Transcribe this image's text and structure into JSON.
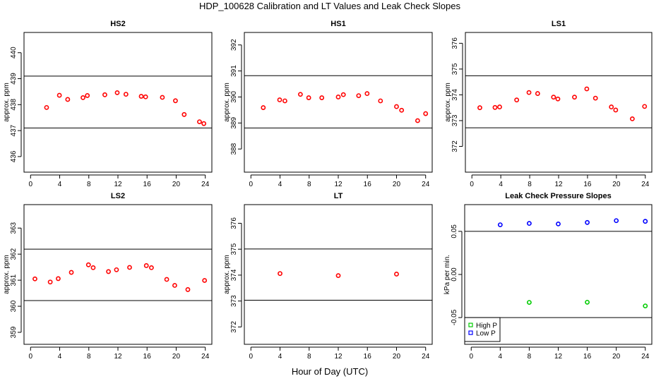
{
  "title": "HDP_100628  Calibration and LT Values and Leak Check Slopes",
  "xlabel": "Hour of Day (UTC)",
  "colors": {
    "cal": "#ff0000",
    "high": "#00cc00",
    "low": "#0000ff"
  },
  "chart_data": [
    {
      "type": "scatter",
      "title": "HS2",
      "ylabel": "approx. ppm",
      "xlim": [
        -0.9,
        24.9
      ],
      "ylim": [
        435.4,
        440.78
      ],
      "xticks": [
        "0",
        "4",
        "8",
        "12",
        "16",
        "20",
        "24"
      ],
      "yticks": [
        "436",
        "437",
        "438",
        "439",
        "440"
      ],
      "ref_lines": [
        439.1,
        437.1
      ],
      "series": [
        {
          "name": "HS2",
          "color": "#ff0000",
          "x": [
            2.2,
            3.96,
            5.1,
            7.2,
            7.8,
            10.2,
            11.9,
            13.1,
            15.2,
            15.8,
            18.1,
            19.9,
            21.1,
            23.2,
            23.8
          ],
          "y": [
            437.89,
            438.36,
            438.2,
            438.27,
            438.35,
            438.38,
            438.46,
            438.4,
            438.32,
            438.3,
            438.28,
            438.15,
            437.62,
            437.34,
            437.27
          ]
        }
      ]
    },
    {
      "type": "scatter",
      "title": "HS1",
      "ylabel": "approx. ppm",
      "xlim": [
        -0.9,
        24.9
      ],
      "ylim": [
        387.11,
        392.48
      ],
      "xticks": [
        "0",
        "4",
        "8",
        "12",
        "16",
        "20",
        "24"
      ],
      "yticks": [
        "388",
        "389",
        "390",
        "391",
        "392"
      ],
      "ref_lines": [
        390.82,
        388.81
      ],
      "series": [
        {
          "name": "HS1",
          "color": "#ff0000",
          "x": [
            1.7,
            3.95,
            4.67,
            6.8,
            7.94,
            9.74,
            12.0,
            12.7,
            14.8,
            15.96,
            17.8,
            20.0,
            20.7,
            22.9,
            24.0
          ],
          "y": [
            389.59,
            389.89,
            389.85,
            390.1,
            389.97,
            389.97,
            390.0,
            390.09,
            390.05,
            390.13,
            389.85,
            389.63,
            389.49,
            389.09,
            389.36
          ]
        }
      ]
    },
    {
      "type": "scatter",
      "title": "LS1",
      "ylabel": "approx. ppm",
      "xlim": [
        -0.9,
        24.9
      ],
      "ylim": [
        371.0,
        376.42
      ],
      "xticks": [
        "0",
        "4",
        "8",
        "12",
        "16",
        "20",
        "24"
      ],
      "yticks": [
        "372",
        "373",
        "374",
        "375",
        "376"
      ],
      "ref_lines": [
        374.74,
        372.72
      ],
      "series": [
        {
          "name": "LS1",
          "color": "#ff0000",
          "x": [
            1.1,
            3.2,
            3.84,
            6.2,
            7.9,
            9.1,
            11.3,
            11.9,
            14.2,
            15.9,
            17.1,
            19.3,
            19.9,
            22.2,
            23.9
          ],
          "y": [
            373.5,
            373.51,
            373.53,
            373.8,
            374.09,
            374.05,
            373.91,
            373.84,
            373.91,
            374.23,
            373.87,
            373.53,
            373.41,
            373.07,
            373.55
          ]
        }
      ]
    },
    {
      "type": "scatter",
      "title": "LS2",
      "ylabel": "approx. ppm",
      "xlim": [
        -0.9,
        24.9
      ],
      "ylim": [
        358.54,
        363.9
      ],
      "xticks": [
        "0",
        "4",
        "8",
        "12",
        "16",
        "20",
        "24"
      ],
      "yticks": [
        "359",
        "360",
        "361",
        "362",
        "363"
      ],
      "ref_lines": [
        362.19,
        360.22
      ],
      "series": [
        {
          "name": "LS2",
          "color": "#ff0000",
          "x": [
            0.6,
            2.7,
            3.8,
            5.6,
            7.95,
            8.6,
            10.7,
            11.8,
            13.6,
            15.9,
            16.6,
            18.7,
            19.8,
            21.6,
            23.9
          ],
          "y": [
            361.05,
            360.93,
            361.06,
            361.3,
            361.59,
            361.48,
            361.33,
            361.4,
            361.49,
            361.56,
            361.48,
            361.03,
            360.8,
            360.64,
            360.99
          ]
        }
      ]
    },
    {
      "type": "scatter",
      "title": "LT",
      "ylabel": "approx. ppm",
      "xlim": [
        -0.9,
        24.9
      ],
      "ylim": [
        371.33,
        376.72
      ],
      "xticks": [
        "0",
        "4",
        "8",
        "12",
        "16",
        "20",
        "24"
      ],
      "yticks": [
        "372",
        "373",
        "374",
        "375",
        "376"
      ],
      "ref_lines": [
        375.01,
        373.03
      ],
      "series": [
        {
          "name": "LT",
          "color": "#ff0000",
          "x": [
            4.0,
            12.0,
            20.0
          ],
          "y": [
            374.06,
            373.98,
            374.04
          ]
        }
      ]
    },
    {
      "type": "scatter",
      "title": "Leak Check Pressure Slopes",
      "ylabel": "kPa per min.",
      "xlim": [
        -0.9,
        24.9
      ],
      "ylim": [
        -0.081,
        0.081
      ],
      "xticks": [
        "0",
        "4",
        "8",
        "12",
        "16",
        "20",
        "24"
      ],
      "yticks": [
        "-0.05",
        "0.00",
        "0.05"
      ],
      "ref_lines": [
        0.05,
        -0.05
      ],
      "legend": {
        "position": "bottom-left",
        "entries": [
          "High P",
          "Low P"
        ]
      },
      "series": [
        {
          "name": "High P",
          "color": "#00cc00",
          "x": [
            8,
            16,
            24
          ],
          "y": [
            -0.0324,
            -0.0322,
            -0.0365
          ]
        },
        {
          "name": "Low P",
          "color": "#0000ff",
          "x": [
            4,
            8,
            12,
            16,
            20,
            24
          ],
          "y": [
            0.0576,
            0.0592,
            0.0586,
            0.0603,
            0.0624,
            0.0616
          ]
        }
      ]
    }
  ]
}
